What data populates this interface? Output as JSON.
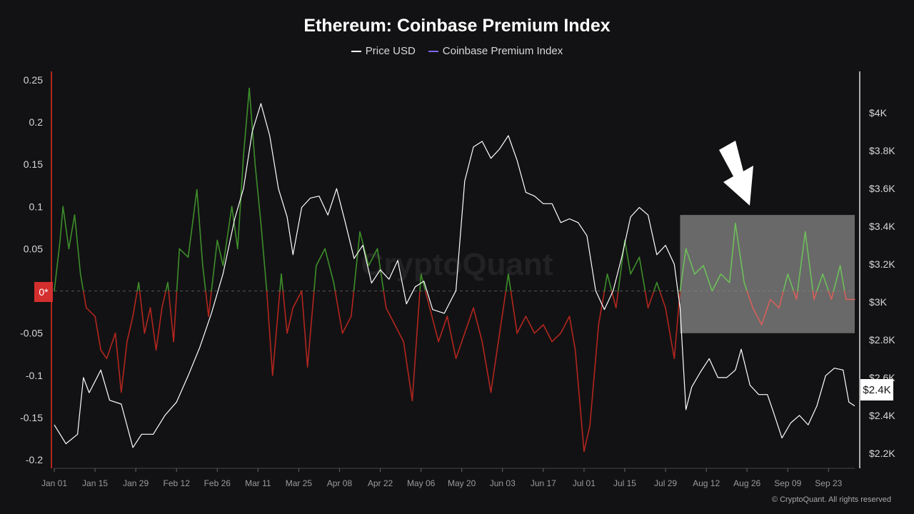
{
  "chart_data": {
    "type": "line",
    "title": "Ethereum: Coinbase Premium Index",
    "legend": [
      {
        "label": "Price USD",
        "color": "#ffffff"
      },
      {
        "label": "Coinbase Premium Index",
        "color": "#7b68ee"
      }
    ],
    "watermark": "CryptoQuant",
    "copyright": "© CryptoQuant. All rights reserved",
    "x_tick_labels": [
      "Jan 01",
      "Jan 15",
      "Jan 29",
      "Feb 12",
      "Feb 26",
      "Mar 11",
      "Mar 25",
      "Apr 08",
      "Apr 22",
      "May 06",
      "May 20",
      "Jun 03",
      "Jun 17",
      "Jul 01",
      "Jul 15",
      "Jul 29",
      "Aug 12",
      "Aug 26",
      "Sep 09",
      "Sep 23"
    ],
    "xlim": [
      "Jan 01",
      "Oct 02"
    ],
    "left_axis": {
      "label": "",
      "range": [
        -0.21,
        0.26
      ],
      "tick_labels": [
        "0.25",
        "0.2",
        "0.15",
        "0.1",
        "0.05",
        "-0.05",
        "-0.1",
        "-0.15",
        "-0.2"
      ],
      "tick_values": [
        0.25,
        0.2,
        0.15,
        0.1,
        0.05,
        -0.05,
        -0.1,
        -0.15,
        -0.2
      ]
    },
    "right_axis": {
      "label": "",
      "range": [
        2120,
        4220
      ],
      "tick_labels": [
        "$4K",
        "$3.8K",
        "$3.6K",
        "$3.4K",
        "$3.2K",
        "$3K",
        "$2.8K",
        "$2.6K",
        "$2.4K",
        "$2.2K"
      ],
      "tick_values": [
        4000,
        3800,
        3600,
        3400,
        3200,
        3000,
        2800,
        2600,
        2400,
        2200
      ]
    },
    "zero_marker_label": "0*",
    "current_price_label": "$2.4K",
    "positive_color": "#3e8e2a",
    "negative_color": "#b3261e",
    "price_color": "#ffffff",
    "highlight": {
      "from": "Aug 03",
      "to": "Oct 02",
      "premium_range": [
        -0.05,
        0.09
      ]
    },
    "annotation": "down-arrow",
    "series": [
      {
        "name": "Price USD",
        "axis": "right",
        "points": [
          [
            "Jan 01",
            2350
          ],
          [
            "Jan 05",
            2250
          ],
          [
            "Jan 09",
            2300
          ],
          [
            "Jan 11",
            2600
          ],
          [
            "Jan 13",
            2520
          ],
          [
            "Jan 17",
            2640
          ],
          [
            "Jan 20",
            2480
          ],
          [
            "Jan 24",
            2460
          ],
          [
            "Jan 28",
            2230
          ],
          [
            "Jan 31",
            2300
          ],
          [
            "Feb 04",
            2300
          ],
          [
            "Feb 08",
            2400
          ],
          [
            "Feb 12",
            2470
          ],
          [
            "Feb 16",
            2610
          ],
          [
            "Feb 20",
            2760
          ],
          [
            "Feb 24",
            2940
          ],
          [
            "Feb 28",
            3150
          ],
          [
            "Mar 03",
            3440
          ],
          [
            "Mar 06",
            3600
          ],
          [
            "Mar 09",
            3900
          ],
          [
            "Mar 12",
            4050
          ],
          [
            "Mar 15",
            3880
          ],
          [
            "Mar 18",
            3600
          ],
          [
            "Mar 21",
            3450
          ],
          [
            "Mar 23",
            3250
          ],
          [
            "Mar 26",
            3500
          ],
          [
            "Mar 29",
            3550
          ],
          [
            "Apr 01",
            3560
          ],
          [
            "Apr 04",
            3460
          ],
          [
            "Apr 07",
            3600
          ],
          [
            "Apr 10",
            3420
          ],
          [
            "Apr 13",
            3230
          ],
          [
            "Apr 16",
            3300
          ],
          [
            "Apr 19",
            3100
          ],
          [
            "Apr 22",
            3170
          ],
          [
            "Apr 25",
            3120
          ],
          [
            "Apr 28",
            3220
          ],
          [
            "May 01",
            2990
          ],
          [
            "May 04",
            3080
          ],
          [
            "May 07",
            3110
          ],
          [
            "May 10",
            2960
          ],
          [
            "May 14",
            2940
          ],
          [
            "May 18",
            3060
          ],
          [
            "May 21",
            3640
          ],
          [
            "May 24",
            3820
          ],
          [
            "May 27",
            3850
          ],
          [
            "May 30",
            3760
          ],
          [
            "Jun 02",
            3810
          ],
          [
            "Jun 05",
            3880
          ],
          [
            "Jun 08",
            3750
          ],
          [
            "Jun 11",
            3580
          ],
          [
            "Jun 14",
            3560
          ],
          [
            "Jun 17",
            3520
          ],
          [
            "Jun 20",
            3520
          ],
          [
            "Jun 23",
            3420
          ],
          [
            "Jun 26",
            3440
          ],
          [
            "Jun 29",
            3420
          ],
          [
            "Jul 02",
            3350
          ],
          [
            "Jul 05",
            3060
          ],
          [
            "Jul 08",
            2960
          ],
          [
            "Jul 11",
            3060
          ],
          [
            "Jul 14",
            3240
          ],
          [
            "Jul 17",
            3450
          ],
          [
            "Jul 20",
            3500
          ],
          [
            "Jul 23",
            3460
          ],
          [
            "Jul 26",
            3250
          ],
          [
            "Jul 29",
            3300
          ],
          [
            "Aug 01",
            3200
          ],
          [
            "Aug 03",
            2970
          ],
          [
            "Aug 05",
            2430
          ],
          [
            "Aug 07",
            2550
          ],
          [
            "Aug 10",
            2630
          ],
          [
            "Aug 13",
            2700
          ],
          [
            "Aug 16",
            2600
          ],
          [
            "Aug 19",
            2600
          ],
          [
            "Aug 22",
            2640
          ],
          [
            "Aug 24",
            2750
          ],
          [
            "Aug 27",
            2560
          ],
          [
            "Aug 30",
            2510
          ],
          [
            "Sep 02",
            2510
          ],
          [
            "Sep 04",
            2420
          ],
          [
            "Sep 07",
            2280
          ],
          [
            "Sep 10",
            2360
          ],
          [
            "Sep 13",
            2400
          ],
          [
            "Sep 16",
            2350
          ],
          [
            "Sep 19",
            2450
          ],
          [
            "Sep 22",
            2610
          ],
          [
            "Sep 25",
            2650
          ],
          [
            "Sep 28",
            2640
          ],
          [
            "Sep 30",
            2470
          ],
          [
            "Oct 02",
            2450
          ]
        ]
      },
      {
        "name": "Coinbase Premium Index",
        "axis": "left",
        "points": [
          [
            "Jan 01",
            0.0
          ],
          [
            "Jan 03",
            0.06
          ],
          [
            "Jan 04",
            0.1
          ],
          [
            "Jan 06",
            0.05
          ],
          [
            "Jan 08",
            0.09
          ],
          [
            "Jan 10",
            0.02
          ],
          [
            "Jan 12",
            -0.02
          ],
          [
            "Jan 15",
            -0.03
          ],
          [
            "Jan 17",
            -0.07
          ],
          [
            "Jan 19",
            -0.08
          ],
          [
            "Jan 22",
            -0.05
          ],
          [
            "Jan 24",
            -0.12
          ],
          [
            "Jan 26",
            -0.06
          ],
          [
            "Jan 28",
            -0.03
          ],
          [
            "Jan 30",
            0.01
          ],
          [
            "Feb 01",
            -0.05
          ],
          [
            "Feb 03",
            -0.02
          ],
          [
            "Feb 05",
            -0.07
          ],
          [
            "Feb 07",
            -0.02
          ],
          [
            "Feb 09",
            0.01
          ],
          [
            "Feb 11",
            -0.06
          ],
          [
            "Feb 13",
            0.05
          ],
          [
            "Feb 16",
            0.04
          ],
          [
            "Feb 19",
            0.12
          ],
          [
            "Feb 21",
            0.03
          ],
          [
            "Feb 23",
            -0.03
          ],
          [
            "Feb 26",
            0.06
          ],
          [
            "Feb 28",
            0.03
          ],
          [
            "Mar 02",
            0.1
          ],
          [
            "Mar 04",
            0.05
          ],
          [
            "Mar 06",
            0.16
          ],
          [
            "Mar 08",
            0.24
          ],
          [
            "Mar 10",
            0.15
          ],
          [
            "Mar 12",
            0.08
          ],
          [
            "Mar 14",
            0.0
          ],
          [
            "Mar 16",
            -0.1
          ],
          [
            "Mar 19",
            0.02
          ],
          [
            "Mar 21",
            -0.05
          ],
          [
            "Mar 23",
            -0.02
          ],
          [
            "Mar 26",
            0.0
          ],
          [
            "Mar 28",
            -0.09
          ],
          [
            "Mar 31",
            0.03
          ],
          [
            "Apr 03",
            0.05
          ],
          [
            "Apr 06",
            0.01
          ],
          [
            "Apr 09",
            -0.05
          ],
          [
            "Apr 12",
            -0.03
          ],
          [
            "Apr 15",
            0.07
          ],
          [
            "Apr 18",
            0.03
          ],
          [
            "Apr 21",
            0.05
          ],
          [
            "Apr 24",
            -0.02
          ],
          [
            "Apr 27",
            -0.04
          ],
          [
            "Apr 30",
            -0.06
          ],
          [
            "May 03",
            -0.13
          ],
          [
            "May 06",
            0.02
          ],
          [
            "May 09",
            -0.02
          ],
          [
            "May 12",
            -0.06
          ],
          [
            "May 15",
            -0.03
          ],
          [
            "May 18",
            -0.08
          ],
          [
            "May 21",
            -0.05
          ],
          [
            "May 24",
            -0.02
          ],
          [
            "May 27",
            -0.06
          ],
          [
            "May 30",
            -0.12
          ],
          [
            "Jun 02",
            -0.05
          ],
          [
            "Jun 05",
            0.02
          ],
          [
            "Jun 08",
            -0.05
          ],
          [
            "Jun 11",
            -0.03
          ],
          [
            "Jun 14",
            -0.05
          ],
          [
            "Jun 17",
            -0.04
          ],
          [
            "Jun 20",
            -0.06
          ],
          [
            "Jun 23",
            -0.05
          ],
          [
            "Jun 26",
            -0.03
          ],
          [
            "Jun 28",
            -0.07
          ],
          [
            "Jul 01",
            -0.19
          ],
          [
            "Jul 03",
            -0.16
          ],
          [
            "Jul 06",
            -0.04
          ],
          [
            "Jul 09",
            0.02
          ],
          [
            "Jul 12",
            -0.02
          ],
          [
            "Jul 15",
            0.06
          ],
          [
            "Jul 17",
            0.02
          ],
          [
            "Jul 20",
            0.04
          ],
          [
            "Jul 23",
            -0.02
          ],
          [
            "Jul 26",
            0.01
          ],
          [
            "Jul 29",
            -0.02
          ],
          [
            "Aug 01",
            -0.08
          ],
          [
            "Aug 03",
            0.0
          ],
          [
            "Aug 05",
            0.05
          ],
          [
            "Aug 08",
            0.02
          ],
          [
            "Aug 11",
            0.03
          ],
          [
            "Aug 14",
            0.0
          ],
          [
            "Aug 17",
            0.02
          ],
          [
            "Aug 20",
            0.01
          ],
          [
            "Aug 22",
            0.08
          ],
          [
            "Aug 25",
            0.01
          ],
          [
            "Aug 28",
            -0.02
          ],
          [
            "Aug 31",
            -0.04
          ],
          [
            "Sep 03",
            -0.01
          ],
          [
            "Sep 06",
            -0.02
          ],
          [
            "Sep 09",
            0.02
          ],
          [
            "Sep 12",
            -0.01
          ],
          [
            "Sep 15",
            0.07
          ],
          [
            "Sep 18",
            -0.01
          ],
          [
            "Sep 21",
            0.02
          ],
          [
            "Sep 24",
            -0.01
          ],
          [
            "Sep 27",
            0.03
          ],
          [
            "Sep 29",
            -0.01
          ],
          [
            "Oct 02",
            -0.01
          ]
        ]
      }
    ]
  }
}
